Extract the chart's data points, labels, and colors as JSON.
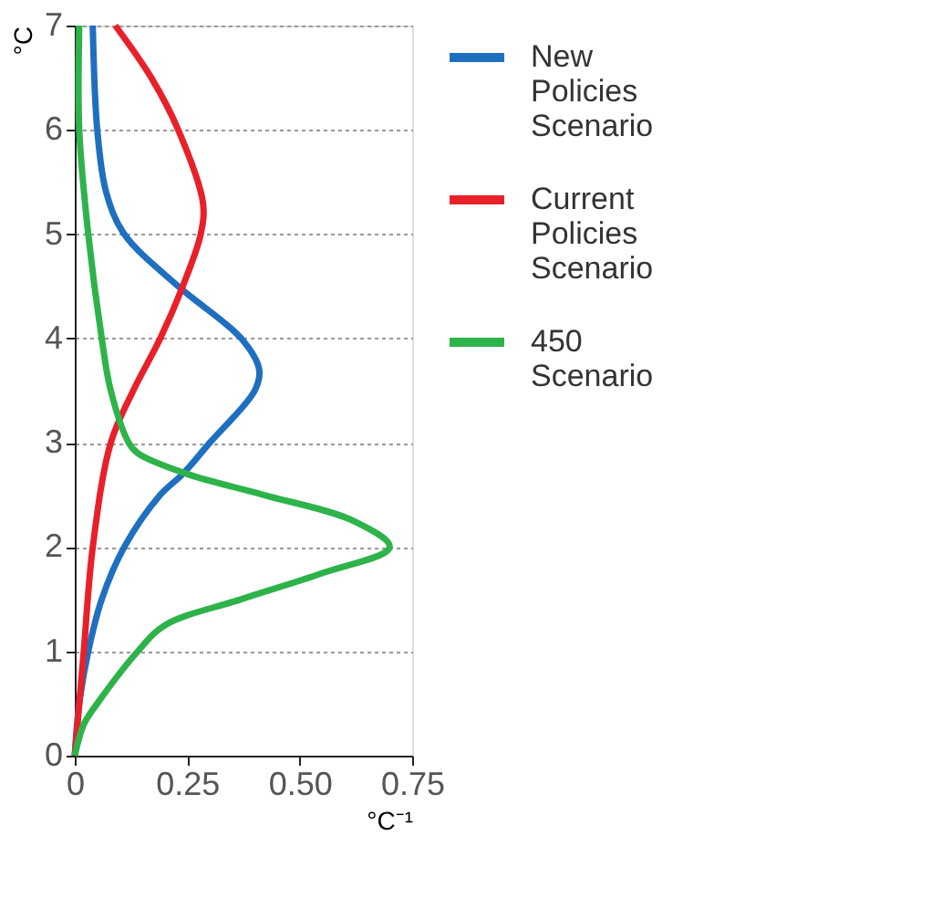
{
  "chart_data": {
    "type": "line",
    "ylabel": "°C",
    "xlabel": "°C⁻¹",
    "xlim": [
      0,
      0.75
    ],
    "xticks": [
      0,
      0.25,
      {
        "value": 0.5,
        "label": "0.50"
      },
      0.75
    ],
    "ylim": [
      0,
      7
    ],
    "yticks": [
      0,
      1,
      2,
      3,
      4,
      5,
      6,
      7
    ],
    "grid": "y",
    "legend": "right",
    "marker": "none",
    "line_style": "solid",
    "series": [
      {
        "name": "New Policies Scenario",
        "color": "#1f6fc0",
        "x": [
          0,
          0.01,
          0.03,
          0.06,
          0.11,
          0.19,
          0.24,
          0.3,
          0.4,
          0.41,
          0.37,
          0.23,
          0.11,
          0.07,
          0.05,
          0.04
        ],
        "values": [
          0,
          0.5,
          1,
          1.5,
          2,
          2.5,
          2.7,
          3,
          3.5,
          3.7,
          4,
          4.5,
          5,
          5.4,
          6,
          7
        ]
      },
      {
        "name": "Current Policies Scenario",
        "color": "#e8202a",
        "x": [
          0,
          0.01,
          0.02,
          0.04,
          0.08,
          0.13,
          0.19,
          0.24,
          0.28,
          0.285,
          0.23,
          0.17,
          0.09
        ],
        "values": [
          0,
          0.5,
          1,
          2,
          3,
          3.5,
          4,
          4.5,
          5,
          5.3,
          6,
          6.5,
          7
        ]
      },
      {
        "name": "450 Scenario",
        "color": "#2eb34a",
        "x": [
          0,
          0.02,
          0.05,
          0.14,
          0.2,
          0.37,
          0.55,
          0.7,
          0.62,
          0.42,
          0.25,
          0.14,
          0.12,
          0.08,
          0.06,
          0.03,
          0.01,
          0.01
        ],
        "values": [
          0,
          0.3,
          0.5,
          1,
          1.25,
          1.5,
          1.75,
          2,
          2.25,
          2.5,
          2.7,
          2.9,
          3,
          3.5,
          4,
          5,
          6,
          7
        ]
      }
    ]
  }
}
